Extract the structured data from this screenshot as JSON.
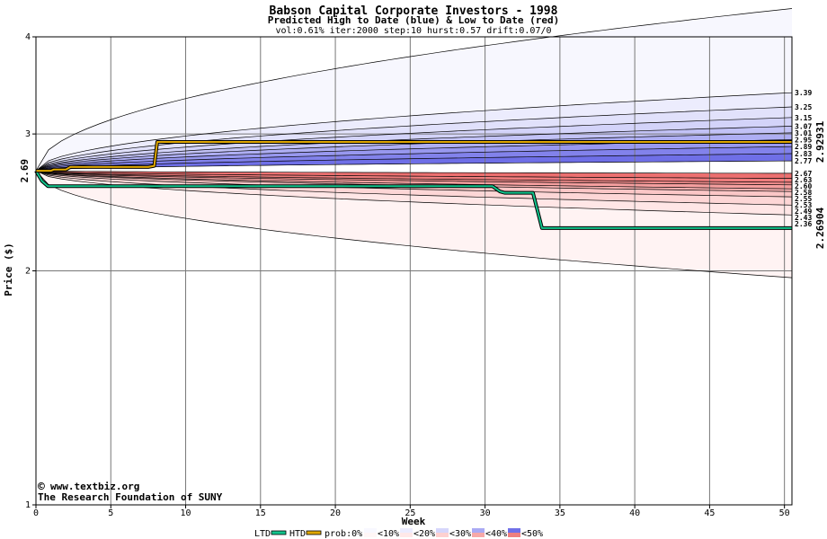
{
  "chart_data": {
    "type": "area",
    "title": "Babson Capital Corporate Investors - 1998",
    "subtitle": "Predicted High to Date (blue) &  Low to Date (red)",
    "params": "vol:0.61% iter:2000 step:10 hurst:0.57 drift:0.07/0",
    "xlabel": "Week",
    "ylabel": "Price ($)",
    "xlim": [
      0,
      50.5
    ],
    "ylim": [
      1,
      4
    ],
    "y_log_scale": true,
    "x_ticks": [
      0,
      5,
      10,
      15,
      20,
      25,
      30,
      35,
      40,
      45,
      50
    ],
    "y_ticks": [
      1,
      2,
      3,
      4
    ],
    "grid": true,
    "start_price": 2.69,
    "start_price_label": "2.69",
    "high_price_label": "2.92931",
    "low_price_label": "2.26904",
    "watermark_line1": "www.textbiz.org",
    "watermark_line2": "The Research Foundation of SUNY",
    "copyright_symbol": "©",
    "high_quantile_labels": [
      "3.39",
      "3.25",
      "3.15",
      "3.07",
      "3.01",
      "2.95",
      "2.89",
      "2.83",
      "2.77"
    ],
    "high_quantile_values": [
      3.39,
      3.25,
      3.15,
      3.07,
      3.01,
      2.95,
      2.89,
      2.83,
      2.77
    ],
    "low_quantile_labels": [
      "2.67",
      "2.63",
      "2.60",
      "2.58",
      "2.55",
      "2.53",
      "2.49",
      "2.43",
      "2.36"
    ],
    "low_quantile_values": [
      2.67,
      2.63,
      2.6,
      2.58,
      2.55,
      2.53,
      2.49,
      2.43,
      2.36
    ],
    "high_envelope_end": 4.35,
    "low_envelope_end": 1.96,
    "htd_series": {
      "name": "HTD",
      "x": [
        0,
        1,
        1.2,
        2,
        2.3,
        7.5,
        7.9,
        8.1,
        50.5
      ],
      "y": [
        2.69,
        2.69,
        2.7,
        2.7,
        2.72,
        2.72,
        2.73,
        2.93,
        2.93
      ]
    },
    "ltd_series": {
      "name": "LTD",
      "x": [
        0,
        0.4,
        0.8,
        30.5,
        31.0,
        31.3,
        33.2,
        33.8,
        50.5
      ],
      "y": [
        2.69,
        2.61,
        2.57,
        2.57,
        2.53,
        2.52,
        2.52,
        2.27,
        2.27
      ]
    },
    "legend": {
      "placement": "bottom",
      "items": [
        {
          "label": "LTD",
          "kind": "line",
          "color": "#12c48c"
        },
        {
          "label": "HTD",
          "kind": "line",
          "color": "#e0a800"
        },
        {
          "label": "prob:0%",
          "kind": "text"
        },
        {
          "label": "<10%",
          "kind": "swatch",
          "colors": [
            "#f8f8ff",
            "#fff6f6"
          ]
        },
        {
          "label": "<20%",
          "kind": "swatch",
          "colors": [
            "#ececff",
            "#ffe8e8"
          ]
        },
        {
          "label": "<30%",
          "kind": "swatch",
          "colors": [
            "#d6d6fb",
            "#fdd0d0"
          ]
        },
        {
          "label": "<40%",
          "kind": "swatch",
          "colors": [
            "#aaaaf4",
            "#f6a8a8"
          ]
        },
        {
          "label": "<50%",
          "kind": "swatch",
          "colors": [
            "#7070e8",
            "#ef7f7f"
          ]
        }
      ]
    },
    "colors": {
      "htd_line": "#e0a800",
      "ltd_line": "#12c48c",
      "high_label": "#8a7a00",
      "low_label": "#008a4a",
      "watermark": "#000080",
      "grid": "#777777"
    }
  }
}
